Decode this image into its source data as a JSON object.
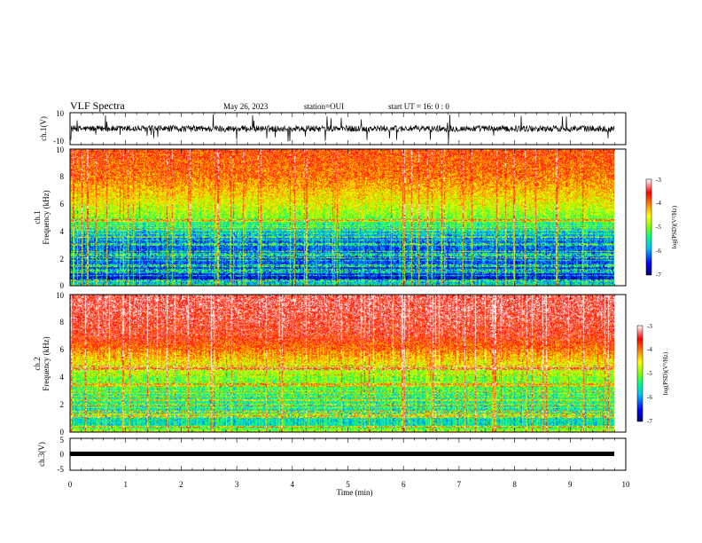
{
  "header": {
    "title": "VLF Spectra",
    "date": "May 26, 2023",
    "station": "station=OUI",
    "start": "start  UT =   16: 0  : 0"
  },
  "panels": {
    "ch1v": {
      "ylabel": "ch.1(V)",
      "ticks": [
        "10",
        "-10"
      ]
    },
    "spec1": {
      "ylabel_ch": "ch.1",
      "ylabel_freq": "Frequency  (kHz)",
      "ticks": [
        "0",
        "2",
        "4",
        "6",
        "8",
        "10"
      ]
    },
    "spec2": {
      "ylabel_ch": "ch.2",
      "ylabel_freq": "Frequency  (kHz)",
      "ticks": [
        "0",
        "2",
        "4",
        "6",
        "8",
        "10"
      ]
    },
    "ch3v": {
      "ylabel": "ch.3(V)",
      "ticks": [
        "5",
        "0",
        "-5"
      ]
    }
  },
  "colorbar": {
    "label": "log(PSD)(V²/Hz)",
    "ticks": [
      "-3",
      "-4",
      "-5",
      "-6",
      "-7"
    ],
    "colors": [
      "#00007f",
      "#0000ff",
      "#00bfff",
      "#00ff80",
      "#80ff00",
      "#ffff00",
      "#ff8000",
      "#ff0000",
      "#ffffff"
    ]
  },
  "xaxis": {
    "label": "Time  (min)",
    "ticks": [
      "0",
      "1",
      "2",
      "3",
      "4",
      "5",
      "6",
      "7",
      "8",
      "9",
      "10"
    ]
  },
  "chart_data": [
    {
      "type": "line",
      "ylabel": "ch.1(V)",
      "xlabel": "Time  (min)",
      "xlim": [
        0,
        10
      ],
      "ylim": [
        -10,
        10
      ],
      "series": [
        {
          "x_range": [
            0,
            9.8
          ],
          "mean": 0,
          "typical_amplitude": 2,
          "max_spike": 9
        }
      ]
    },
    {
      "type": "heatmap",
      "ylabel": "Frequency  (kHz)",
      "channel": "ch.1",
      "xlim": [
        0,
        10
      ],
      "ylim": [
        0,
        10
      ],
      "x_end": 9.8,
      "value_label": "log(PSD)(V²/Hz)",
      "value_range": [
        -7,
        -3
      ],
      "profile_khz": [
        0,
        0.5,
        1,
        2,
        3,
        3.5,
        4,
        5,
        6,
        7,
        8,
        9,
        10
      ],
      "profile_level": [
        -5.4,
        -6.6,
        -6.4,
        -6.2,
        -6.2,
        -6.0,
        -5.7,
        -5.0,
        -4.6,
        -4.3,
        -4.0,
        -3.9,
        -3.8
      ]
    },
    {
      "type": "heatmap",
      "ylabel": "Frequency  (kHz)",
      "channel": "ch.2",
      "xlim": [
        0,
        10
      ],
      "ylim": [
        0,
        10
      ],
      "x_end": 9.8,
      "value_label": "log(PSD)(V²/Hz)",
      "value_range": [
        -7,
        -3
      ],
      "profile_khz": [
        0,
        0.5,
        1,
        2,
        3,
        4,
        5,
        6,
        7,
        8,
        9,
        10
      ],
      "profile_level": [
        -4.8,
        -5.6,
        -5.6,
        -5.5,
        -5.3,
        -5.0,
        -4.5,
        -4.0,
        -3.6,
        -3.5,
        -3.4,
        -3.4
      ]
    },
    {
      "type": "line",
      "ylabel": "ch.3(V)",
      "xlabel": "Time  (min)",
      "xlim": [
        0,
        10
      ],
      "ylim": [
        -5,
        5
      ],
      "series": [
        {
          "x_range": [
            0,
            9.8
          ],
          "mean": 0,
          "typical_amplitude": 0.3
        }
      ]
    }
  ]
}
